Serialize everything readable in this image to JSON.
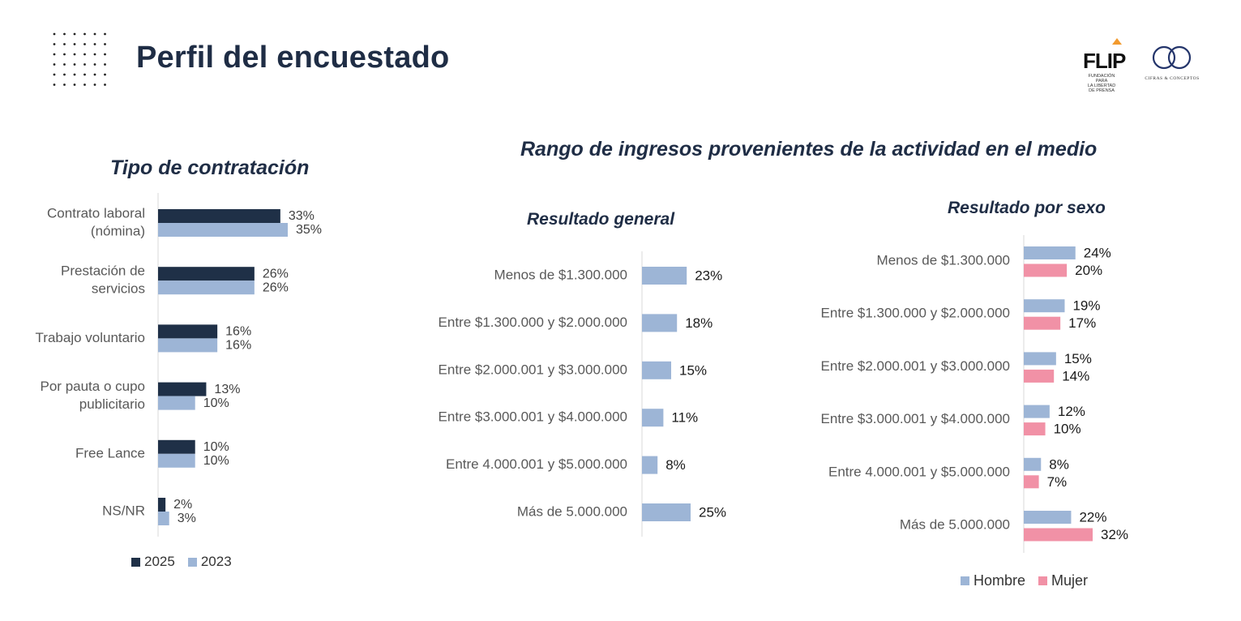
{
  "header": {
    "title": "Perfil del encuestado"
  },
  "logos": {
    "flip": {
      "word": "FLIP",
      "tagline": [
        "FUNDACIÓN PARA",
        "LA LIBERTAD",
        "DE PRENSA"
      ]
    },
    "cifras": {
      "tagline": "CIFRAS & CONCEPTOS"
    }
  },
  "colors": {
    "navy": "#1f3047",
    "light_blue": "#9db5d6",
    "pink": "#f191a6",
    "title": "#1f2d45"
  },
  "chart_data": [
    {
      "type": "bar",
      "orientation": "horizontal",
      "title": "Tipo de contratación",
      "categories": [
        [
          "Contrato laboral",
          "(nómina)"
        ],
        [
          "Prestación de",
          "servicios"
        ],
        [
          "Trabajo voluntario"
        ],
        [
          "Por pauta o cupo",
          "publicitario"
        ],
        [
          "Free Lance"
        ],
        [
          "NS/NR"
        ]
      ],
      "series": [
        {
          "name": "2025",
          "color": "#1f3047",
          "values": [
            33,
            26,
            16,
            13,
            10,
            2
          ],
          "labels": [
            "33%",
            "26%",
            "16%",
            "13%",
            "10%",
            "2%"
          ]
        },
        {
          "name": "2023",
          "color": "#9db5d6",
          "values": [
            35,
            26,
            16,
            10,
            10,
            3
          ],
          "labels": [
            "35%",
            "26%",
            "16%",
            "10%",
            "10%",
            "3%"
          ]
        }
      ],
      "legend": "bottom"
    },
    {
      "type": "bar",
      "orientation": "horizontal",
      "title": "Rango de ingresos provenientes de la actividad en el medio",
      "subtitle": "Resultado general",
      "categories": [
        "Menos de $1.300.000",
        "Entre $1.300.000 y $2.000.000",
        "Entre $2.000.001 y $3.000.000",
        "Entre $3.000.001 y $4.000.000",
        "Entre 4.000.001 y $5.000.000",
        "Más de 5.000.000"
      ],
      "series": [
        {
          "color": "#9db5d6",
          "values": [
            23,
            18,
            15,
            11,
            8,
            25
          ],
          "labels": [
            "23%",
            "18%",
            "15%",
            "11%",
            "8%",
            "25%"
          ]
        }
      ]
    },
    {
      "type": "bar",
      "orientation": "horizontal",
      "subtitle": "Resultado por sexo",
      "categories": [
        "Menos de $1.300.000",
        "Entre $1.300.000 y $2.000.000",
        "Entre $2.000.001 y $3.000.000",
        "Entre $3.000.001 y $4.000.000",
        "Entre 4.000.001 y $5.000.000",
        "Más de 5.000.000"
      ],
      "series": [
        {
          "name": "Hombre",
          "color": "#9db5d6",
          "values": [
            24,
            19,
            15,
            12,
            8,
            22
          ],
          "labels": [
            "24%",
            "19%",
            "15%",
            "12%",
            "8%",
            "22%"
          ]
        },
        {
          "name": "Mujer",
          "color": "#f191a6",
          "values": [
            20,
            17,
            14,
            10,
            7,
            32
          ],
          "labels": [
            "20%",
            "17%",
            "14%",
            "10%",
            "7%",
            "32%"
          ]
        }
      ],
      "legend": "bottom"
    }
  ]
}
